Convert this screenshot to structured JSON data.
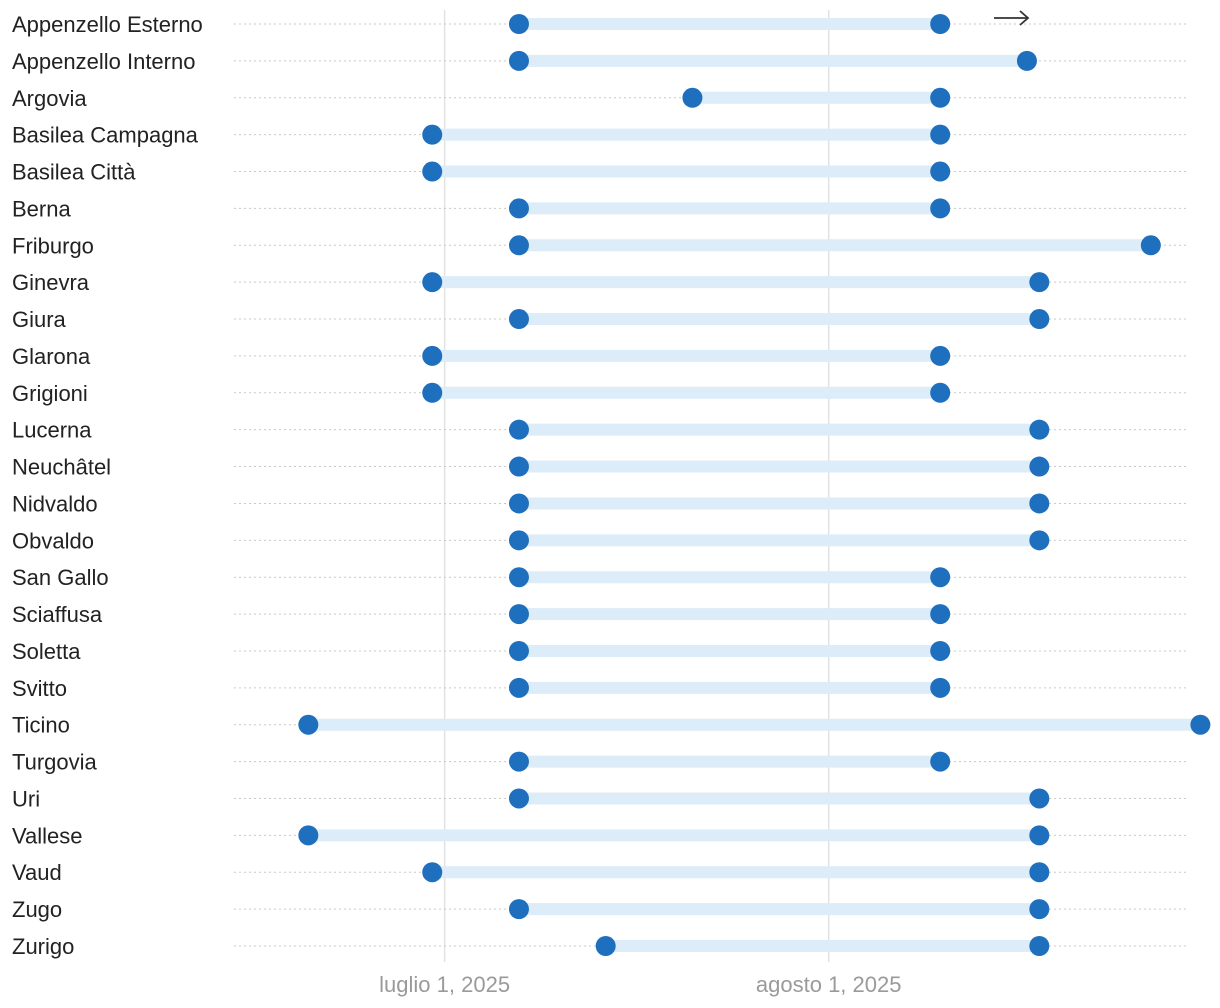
{
  "chart_data": {
    "type": "dumbbell",
    "x_axis": {
      "type": "date",
      "range": [
        "2025-06-14",
        "2025-08-30"
      ],
      "ticks": [
        {
          "date": "2025-07-01",
          "label": "luglio 1, 2025"
        },
        {
          "date": "2025-08-01",
          "label": "agosto 1, 2025"
        }
      ],
      "gridlines": true
    },
    "title": "",
    "xlabel": "",
    "ylabel": "",
    "series": [
      {
        "label": "Appenzello Esterno",
        "start": "2025-07-07",
        "end": "2025-08-10"
      },
      {
        "label": "Appenzello Interno",
        "start": "2025-07-07",
        "end": "2025-08-17"
      },
      {
        "label": "Argovia",
        "start": "2025-07-21",
        "end": "2025-08-10"
      },
      {
        "label": "Basilea Campagna",
        "start": "2025-06-30",
        "end": "2025-08-10"
      },
      {
        "label": "Basilea Città",
        "start": "2025-06-30",
        "end": "2025-08-10"
      },
      {
        "label": "Berna",
        "start": "2025-07-07",
        "end": "2025-08-10"
      },
      {
        "label": "Friburgo",
        "start": "2025-07-07",
        "end": "2025-08-27"
      },
      {
        "label": "Ginevra",
        "start": "2025-06-30",
        "end": "2025-08-18"
      },
      {
        "label": "Giura",
        "start": "2025-07-07",
        "end": "2025-08-18"
      },
      {
        "label": "Glarona",
        "start": "2025-06-30",
        "end": "2025-08-10"
      },
      {
        "label": "Grigioni",
        "start": "2025-06-30",
        "end": "2025-08-10"
      },
      {
        "label": "Lucerna",
        "start": "2025-07-07",
        "end": "2025-08-18"
      },
      {
        "label": "Neuchâtel",
        "start": "2025-07-07",
        "end": "2025-08-18"
      },
      {
        "label": "Nidvaldo",
        "start": "2025-07-07",
        "end": "2025-08-18"
      },
      {
        "label": "Obvaldo",
        "start": "2025-07-07",
        "end": "2025-08-18"
      },
      {
        "label": "San Gallo",
        "start": "2025-07-07",
        "end": "2025-08-10"
      },
      {
        "label": "Sciaffusa",
        "start": "2025-07-07",
        "end": "2025-08-10"
      },
      {
        "label": "Soletta",
        "start": "2025-07-07",
        "end": "2025-08-10"
      },
      {
        "label": "Svitto",
        "start": "2025-07-07",
        "end": "2025-08-10"
      },
      {
        "label": "Ticino",
        "start": "2025-06-20",
        "end": "2025-08-31"
      },
      {
        "label": "Turgovia",
        "start": "2025-07-07",
        "end": "2025-08-10"
      },
      {
        "label": "Uri",
        "start": "2025-07-07",
        "end": "2025-08-18"
      },
      {
        "label": "Vallese",
        "start": "2025-06-20",
        "end": "2025-08-18"
      },
      {
        "label": "Vaud",
        "start": "2025-06-30",
        "end": "2025-08-18"
      },
      {
        "label": "Zugo",
        "start": "2025-07-07",
        "end": "2025-08-18"
      },
      {
        "label": "Zurigo",
        "start": "2025-07-14",
        "end": "2025-08-18"
      }
    ],
    "colors": {
      "dot": "#1f6fbf",
      "bar": "#dcecf8",
      "gridline": "#e2e2e2",
      "row_line": "#c9c9c9",
      "label": "#222222",
      "tick_label": "#9a9a9a"
    },
    "annotation_icon": "arrow-right-icon"
  }
}
